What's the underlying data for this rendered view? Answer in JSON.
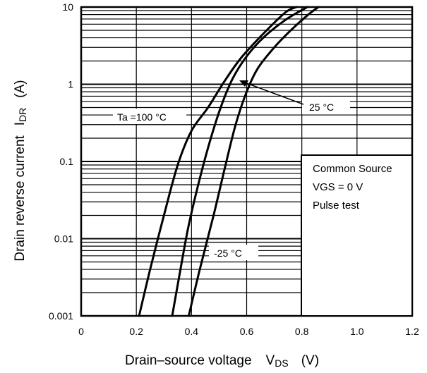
{
  "chart_data": {
    "type": "line",
    "title": "",
    "xlabel": "Drain–source voltage",
    "xlabel_symbol": "V",
    "xlabel_sub": "DS",
    "xlabel_unit": "(V)",
    "ylabel": "Drain reverse current",
    "ylabel_symbol": "I",
    "ylabel_sub": "DR",
    "ylabel_unit": "(A)",
    "xlim": [
      0,
      1.2
    ],
    "ylim": [
      0.001,
      10
    ],
    "yscale": "log",
    "x_ticks": [
      "0",
      "0.2",
      "0.4",
      "0.6",
      "0.8",
      "1.0",
      "1.2"
    ],
    "y_ticks": [
      "0.001",
      "0.01",
      "0.1",
      "1",
      "10"
    ],
    "grid": true,
    "legend_box": {
      "placement": "bottom-right",
      "lines": [
        "Common Source",
        "VGS = 0 V",
        "Pulse test"
      ]
    },
    "series": [
      {
        "name": "Ta =100 °C",
        "x": [
          0.21,
          0.25,
          0.3,
          0.35,
          0.4,
          0.46,
          0.52,
          0.58,
          0.66,
          0.74,
          0.78
        ],
        "y": [
          0.001,
          0.004,
          0.02,
          0.09,
          0.25,
          0.5,
          1.1,
          2.2,
          4.5,
          8.5,
          10
        ]
      },
      {
        "name": "25 °C",
        "x": [
          0.33,
          0.36,
          0.39,
          0.43,
          0.47,
          0.51,
          0.55,
          0.6,
          0.66,
          0.74,
          0.82
        ],
        "y": [
          0.001,
          0.004,
          0.015,
          0.06,
          0.2,
          0.55,
          1.2,
          2.3,
          4.0,
          6.8,
          10
        ]
      },
      {
        "name": "-25 °C",
        "x": [
          0.39,
          0.43,
          0.48,
          0.52,
          0.56,
          0.6,
          0.64,
          0.7,
          0.76,
          0.82,
          0.86
        ],
        "y": [
          0.001,
          0.004,
          0.02,
          0.08,
          0.3,
          0.8,
          1.6,
          3.0,
          5.0,
          7.8,
          10
        ]
      }
    ],
    "annotations": [
      {
        "text": "Ta =100 °C",
        "series": 0
      },
      {
        "text": "25 °C",
        "series": 1
      },
      {
        "text": "-25 °C",
        "series": 2
      }
    ]
  }
}
